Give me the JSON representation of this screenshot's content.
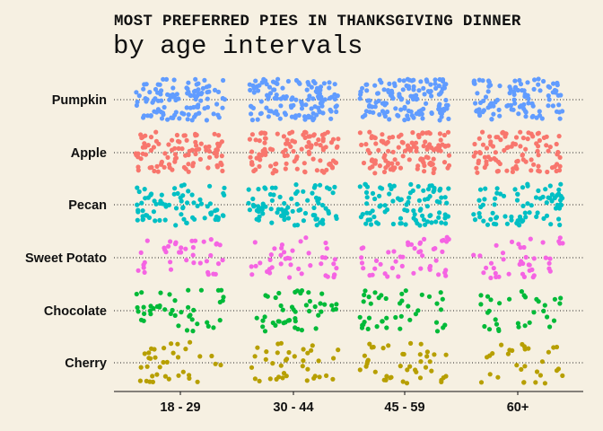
{
  "chart_data": {
    "type": "scatter",
    "title": "MOST PREFERRED PIES IN THANKSGIVING DINNER",
    "subtitle": "by age intervals",
    "xlabel": "",
    "ylabel": "",
    "jitter": true,
    "grid": "dotted horizontal",
    "legend": "none",
    "age_groups": [
      "18 - 29",
      "30 - 44",
      "45 - 59",
      "60+"
    ],
    "pies": [
      "Pumpkin",
      "Apple",
      "Pecan",
      "Sweet Potato",
      "Chocolate",
      "Cherry"
    ],
    "colors": {
      "Pumpkin": "#619cff",
      "Apple": "#f8766d",
      "Pecan": "#00bfc4",
      "Sweet Potato": "#f564e3",
      "Chocolate": "#00ba38",
      "Cherry": "#b79f00"
    },
    "counts": {
      "Pumpkin": [
        112,
        125,
        138,
        104
      ],
      "Apple": [
        98,
        108,
        118,
        96
      ],
      "Pecan": [
        76,
        84,
        95,
        80
      ],
      "Sweet Potato": [
        40,
        42,
        48,
        42
      ],
      "Chocolate": [
        44,
        46,
        42,
        32
      ],
      "Cherry": [
        36,
        38,
        42,
        30
      ]
    }
  }
}
